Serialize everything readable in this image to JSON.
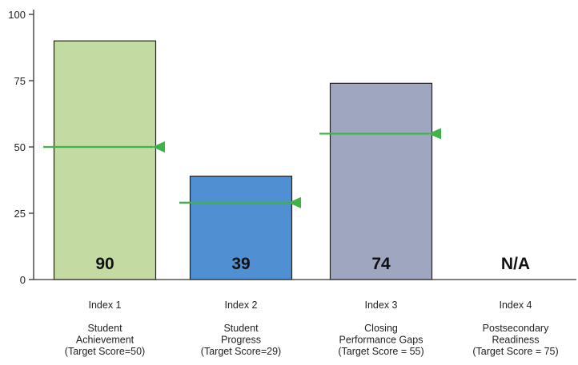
{
  "chart_data": {
    "type": "bar",
    "ylim": [
      0,
      100
    ],
    "yticks": [
      0,
      25,
      50,
      75,
      100
    ],
    "grid": false,
    "categories": [
      {
        "index": "Index 1",
        "name": [
          "Student",
          "Achievement",
          "(Target Score=50)"
        ]
      },
      {
        "index": "Index 2",
        "name": [
          "Student",
          "Progress",
          "(Target Score=29)"
        ]
      },
      {
        "index": "Index 3",
        "name": [
          "Closing",
          "Performance Gaps",
          "(Target Score = 55)"
        ]
      },
      {
        "index": "Index 4",
        "name": [
          "Postsecondary",
          "Readiness",
          "(Target Score = 75)"
        ]
      }
    ],
    "values": [
      90,
      39,
      74,
      null
    ],
    "value_labels": [
      "90",
      "39",
      "74",
      "N/A"
    ],
    "targets": [
      50,
      29,
      55,
      null
    ],
    "colors": {
      "bars": [
        "#c3dba3",
        "#4f8fd2",
        "#9fa6bf",
        "#ffffff"
      ],
      "target_marker": "#3fb24a",
      "axis": "#333333"
    }
  }
}
